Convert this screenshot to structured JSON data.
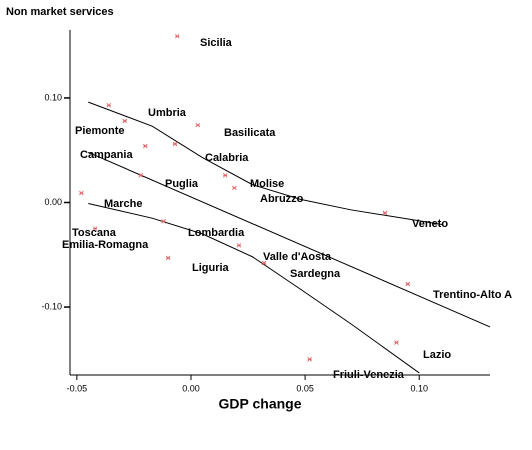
{
  "chart_data": {
    "type": "scatter",
    "title": "Non market services",
    "x_label": "GDP change",
    "labels": [
      "Sicilia",
      "Umbria",
      "Piemonte",
      "Basilicata",
      "Calabria",
      "Campania",
      "Puglia",
      "Molise",
      "Abruzzo",
      "Veneto",
      "Marche",
      "Toscana",
      "Emilia-Romagna",
      "Lombardia",
      "Liguria",
      "Valle d'Aosta",
      "Sardegna",
      "Trentino-Alto A",
      "Lazio",
      "Friuli-Venezia"
    ],
    "x": [
      -0.006,
      -0.036,
      -0.029,
      0.003,
      -0.007,
      -0.02,
      -0.022,
      0.015,
      0.019,
      0.085,
      -0.048,
      -0.042,
      -0.012,
      0.021,
      -0.01,
      0.032,
      0.032,
      0.095,
      0.09,
      0.052
    ],
    "values": [
      0.159,
      0.093,
      0.078,
      0.074,
      0.056,
      0.054,
      0.026,
      0.026,
      0.014,
      -0.01,
      0.009,
      -0.025,
      -0.018,
      -0.041,
      -0.053,
      -0.058,
      -0.058,
      -0.078,
      -0.134,
      -0.15
    ],
    "color": "#e06060",
    "fit_lines": [
      {
        "x": [
          -0.045,
          0.131
        ],
        "values": [
          0.048,
          -0.119
        ]
      },
      {
        "x": [
          -0.045,
          -0.017,
          0.005,
          0.027,
          0.048,
          0.07,
          0.11
        ],
        "values": [
          0.096,
          0.073,
          0.043,
          0.017,
          0.003,
          -0.007,
          -0.021
        ]
      },
      {
        "x": [
          -0.045,
          -0.017,
          0.005,
          0.027,
          0.048,
          0.07,
          0.1
        ],
        "values": [
          -0.001,
          -0.015,
          -0.03,
          -0.052,
          -0.083,
          -0.116,
          -0.163
        ]
      }
    ],
    "xlim": [
      -0.053,
      0.131
    ],
    "ylim": [
      -0.165,
      0.165
    ],
    "xticks": [
      {
        "value": -0.05,
        "label": "-0.05"
      },
      {
        "value": 0,
        "label": "0.00"
      },
      {
        "value": 0.05,
        "label": "0.05"
      },
      {
        "value": 0.1,
        "label": "0.10"
      }
    ],
    "yticks": [
      {
        "value": 0.1,
        "label": "0.10"
      },
      {
        "value": 0,
        "label": "0.00"
      },
      {
        "value": -0.1,
        "label": "-0.10"
      }
    ]
  }
}
